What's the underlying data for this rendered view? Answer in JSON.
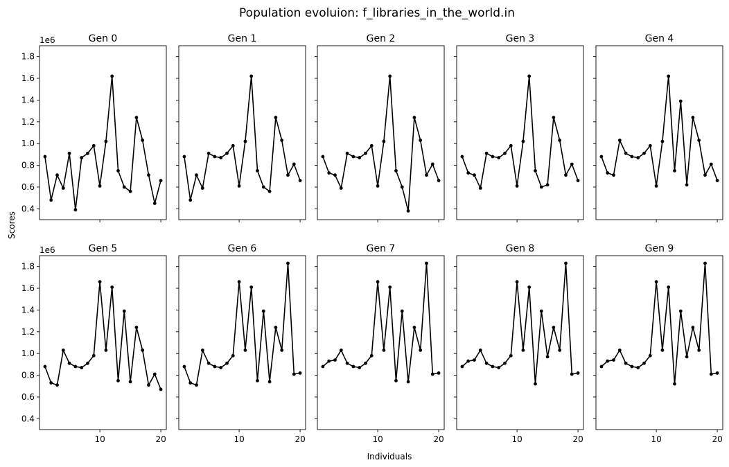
{
  "chart_data": {
    "type": "line",
    "title": "Population evoluion: f_libraries_in_the_world.in",
    "xlabel": "Individuals",
    "ylabel": "Scores",
    "y_offset_text": "1e6",
    "ylim": [
      300000,
      1900000
    ],
    "xlim": [
      0.1,
      20.9
    ],
    "x_ticks": [
      10,
      20
    ],
    "y_ticks": [
      400000,
      600000,
      800000,
      1000000,
      1200000,
      1400000,
      1600000,
      1800000
    ],
    "y_tick_labels": [
      "0.4",
      "0.6",
      "0.8",
      "1.0",
      "1.2",
      "1.4",
      "1.6",
      "1.8"
    ],
    "line_color": "#000000",
    "grid": false,
    "x": [
      1,
      2,
      3,
      4,
      5,
      6,
      7,
      8,
      9,
      10,
      11,
      12,
      13,
      14,
      15,
      16,
      17,
      18,
      19,
      20
    ],
    "panels": [
      {
        "title": "Gen 0",
        "values": [
          880000,
          480000,
          710000,
          590000,
          910000,
          390000,
          870000,
          910000,
          980000,
          610000,
          1020000,
          1620000,
          750000,
          600000,
          560000,
          1240000,
          1030000,
          710000,
          450000,
          660000
        ]
      },
      {
        "title": "Gen 1",
        "values": [
          880000,
          480000,
          710000,
          590000,
          910000,
          880000,
          870000,
          910000,
          980000,
          610000,
          1020000,
          1620000,
          750000,
          600000,
          560000,
          1240000,
          1030000,
          710000,
          810000,
          660000
        ]
      },
      {
        "title": "Gen 2",
        "values": [
          880000,
          730000,
          710000,
          590000,
          910000,
          880000,
          870000,
          910000,
          980000,
          610000,
          1020000,
          1620000,
          750000,
          600000,
          380000,
          1240000,
          1030000,
          710000,
          810000,
          660000
        ]
      },
      {
        "title": "Gen 3",
        "values": [
          880000,
          730000,
          710000,
          590000,
          910000,
          880000,
          870000,
          910000,
          980000,
          610000,
          1020000,
          1620000,
          750000,
          600000,
          620000,
          1240000,
          1030000,
          710000,
          810000,
          660000
        ]
      },
      {
        "title": "Gen 4",
        "values": [
          880000,
          730000,
          710000,
          1030000,
          910000,
          880000,
          870000,
          910000,
          980000,
          610000,
          1020000,
          1620000,
          750000,
          1390000,
          620000,
          1240000,
          1030000,
          710000,
          810000,
          660000
        ]
      },
      {
        "title": "Gen 5",
        "values": [
          880000,
          730000,
          710000,
          1030000,
          910000,
          880000,
          870000,
          910000,
          980000,
          1660000,
          1030000,
          1610000,
          750000,
          1390000,
          740000,
          1240000,
          1030000,
          710000,
          810000,
          670000
        ]
      },
      {
        "title": "Gen 6",
        "values": [
          880000,
          730000,
          710000,
          1030000,
          910000,
          880000,
          870000,
          910000,
          980000,
          1660000,
          1030000,
          1610000,
          750000,
          1390000,
          740000,
          1240000,
          1030000,
          1830000,
          810000,
          820000
        ]
      },
      {
        "title": "Gen 7",
        "values": [
          880000,
          930000,
          940000,
          1030000,
          910000,
          880000,
          870000,
          910000,
          980000,
          1660000,
          1030000,
          1610000,
          750000,
          1390000,
          740000,
          1240000,
          1030000,
          1830000,
          810000,
          820000
        ]
      },
      {
        "title": "Gen 8",
        "values": [
          880000,
          930000,
          940000,
          1030000,
          910000,
          880000,
          870000,
          910000,
          980000,
          1660000,
          1030000,
          1610000,
          720000,
          1390000,
          970000,
          1240000,
          1030000,
          1830000,
          810000,
          820000
        ]
      },
      {
        "title": "Gen 9",
        "values": [
          880000,
          930000,
          940000,
          1030000,
          910000,
          880000,
          870000,
          910000,
          980000,
          1660000,
          1030000,
          1610000,
          720000,
          1390000,
          970000,
          1240000,
          1030000,
          1830000,
          810000,
          820000
        ]
      }
    ]
  }
}
